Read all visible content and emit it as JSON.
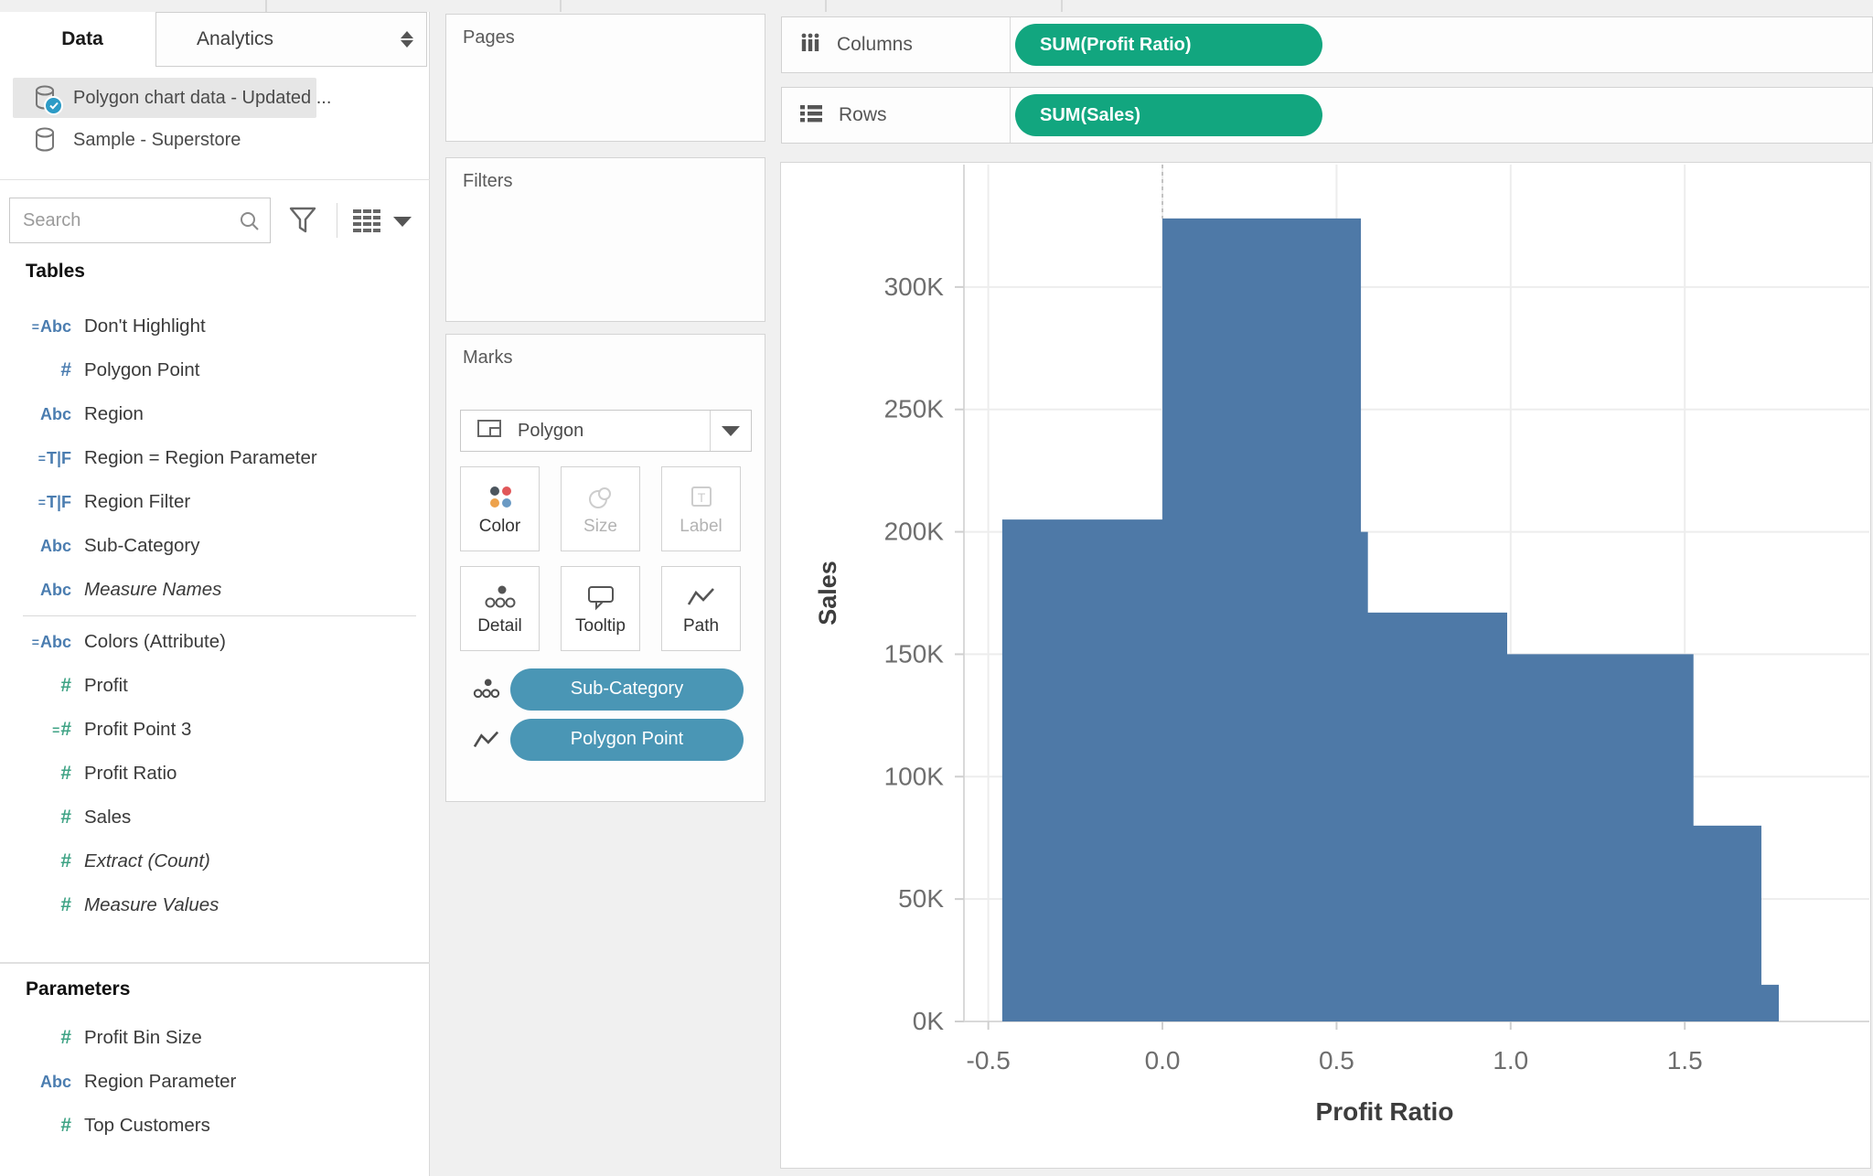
{
  "colors": {
    "pill_green": "#12A67F",
    "pill_blue": "#4A96B5",
    "bar_blue": "#4E79A7",
    "field_icon_blue": "#4B7DB0",
    "field_icon_green": "#3FA385"
  },
  "sidebar": {
    "tabs": {
      "data": "Data",
      "analytics": "Analytics"
    },
    "data_sources": [
      {
        "name": "Polygon chart data - Updated ...",
        "selected": true
      },
      {
        "name": "Sample - Superstore",
        "selected": false
      }
    ],
    "search_placeholder": "Search",
    "tables_header": "Tables",
    "fields": [
      {
        "icon": "calc-string",
        "label": "Don't Highlight"
      },
      {
        "icon": "number",
        "color": "blue",
        "label": "Polygon Point"
      },
      {
        "icon": "string",
        "label": "Region"
      },
      {
        "icon": "calc-bool",
        "label": "Region = Region Parameter"
      },
      {
        "icon": "calc-bool",
        "label": "Region Filter"
      },
      {
        "icon": "string",
        "label": "Sub-Category"
      },
      {
        "icon": "string",
        "label": "Measure Names",
        "italic": true
      },
      {
        "divider": true
      },
      {
        "icon": "calc-string",
        "label": "Colors (Attribute)"
      },
      {
        "icon": "number",
        "color": "green",
        "label": "Profit"
      },
      {
        "icon": "calc-number",
        "color": "green",
        "label": "Profit Point 3"
      },
      {
        "icon": "number",
        "color": "green",
        "label": "Profit Ratio"
      },
      {
        "icon": "number",
        "color": "green",
        "label": "Sales"
      },
      {
        "icon": "number",
        "color": "green",
        "label": "Extract (Count)",
        "italic": true
      },
      {
        "icon": "number",
        "color": "green",
        "label": "Measure Values",
        "italic": true
      }
    ],
    "parameters_header": "Parameters",
    "parameters": [
      {
        "icon": "number",
        "color": "green",
        "label": "Profit Bin Size"
      },
      {
        "icon": "string",
        "label": "Region Parameter"
      },
      {
        "icon": "number",
        "color": "green",
        "label": "Top Customers"
      }
    ]
  },
  "cards": {
    "pages_title": "Pages",
    "filters_title": "Filters",
    "marks": {
      "title": "Marks",
      "mark_type": "Polygon",
      "buttons": [
        {
          "label": "Color",
          "icon": "color",
          "enabled": true
        },
        {
          "label": "Size",
          "icon": "size",
          "enabled": false
        },
        {
          "label": "Label",
          "icon": "label",
          "enabled": false
        },
        {
          "label": "Detail",
          "icon": "detail",
          "enabled": true
        },
        {
          "label": "Tooltip",
          "icon": "tooltip",
          "enabled": true
        },
        {
          "label": "Path",
          "icon": "path",
          "enabled": true
        }
      ],
      "pills": [
        {
          "icon": "detail",
          "label": "Sub-Category"
        },
        {
          "icon": "path",
          "label": "Polygon Point"
        }
      ]
    }
  },
  "shelves": {
    "columns": {
      "label": "Columns",
      "pill": "SUM(Profit Ratio)"
    },
    "rows": {
      "label": "Rows",
      "pill": "SUM(Sales)"
    }
  },
  "chart_data": {
    "type": "area",
    "subtype": "step-polygon-histogram",
    "xlabel": "Profit Ratio",
    "ylabel": "Sales",
    "x_ticks": [
      -0.5,
      0.0,
      0.5,
      1.0,
      1.5
    ],
    "x_tick_labels": [
      "-0.5",
      "0.0",
      "0.5",
      "1.0",
      "1.5"
    ],
    "y_ticks": [
      0,
      50000,
      100000,
      150000,
      200000,
      250000,
      300000
    ],
    "y_tick_labels": [
      "0K",
      "50K",
      "100K",
      "150K",
      "200K",
      "250K",
      "300K"
    ],
    "xlim": [
      -0.57,
      2.03
    ],
    "ylim": [
      0,
      350000
    ],
    "grid": true,
    "mark_color": "#4E79A7",
    "zero_reference_line_x": 0.0,
    "segments": [
      {
        "x_start": -0.46,
        "x_end": 0.0,
        "sales": 205000
      },
      {
        "x_start": 0.0,
        "x_end": 0.57,
        "sales": 328000
      },
      {
        "x_start": 0.57,
        "x_end": 0.59,
        "sales": 200000
      },
      {
        "x_start": 0.59,
        "x_end": 0.99,
        "sales": 167000
      },
      {
        "x_start": 0.99,
        "x_end": 1.525,
        "sales": 150000
      },
      {
        "x_start": 1.525,
        "x_end": 1.72,
        "sales": 80000
      },
      {
        "x_start": 1.72,
        "x_end": 1.77,
        "sales": 15000
      }
    ]
  }
}
